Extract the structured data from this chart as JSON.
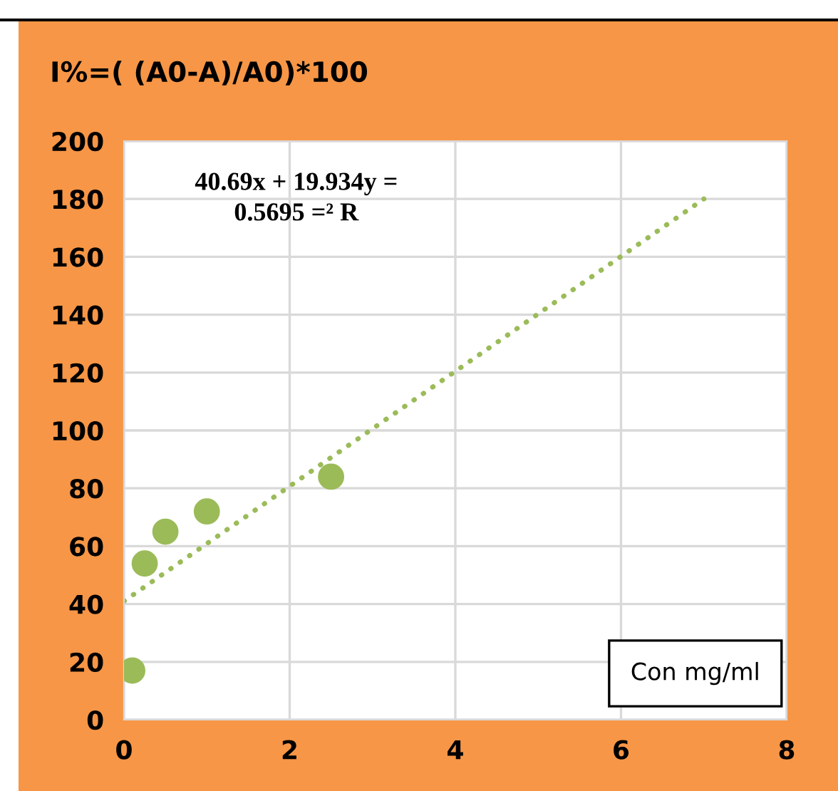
{
  "chart_data": {
    "type": "scatter",
    "title": "I%=( (A0-A)/A0)*100",
    "xlabel": "Con mg/ml",
    "annotations": [
      "40.69x + 19.934y =\n0.5695 =² R"
    ],
    "series": [
      {
        "color": "#9bbb59",
        "x": [
          0.1,
          0.25,
          0.5,
          1,
          2.5
        ],
        "values": [
          17,
          54,
          65,
          72,
          84
        ],
        "marker": "circle"
      },
      {
        "type": "line",
        "color": "#9bbb59",
        "x": [
          0,
          7
        ],
        "values": [
          41,
          180
        ],
        "line_style": "dotted",
        "marker": "none"
      }
    ],
    "xlim": [
      0,
      8
    ],
    "xticks": [
      0,
      2,
      4,
      6,
      8
    ],
    "ylim": [
      0,
      200
    ],
    "yticks": [
      0,
      20,
      40,
      60,
      80,
      100,
      120,
      140,
      160,
      180,
      200
    ],
    "grid": true,
    "legend": false
  }
}
